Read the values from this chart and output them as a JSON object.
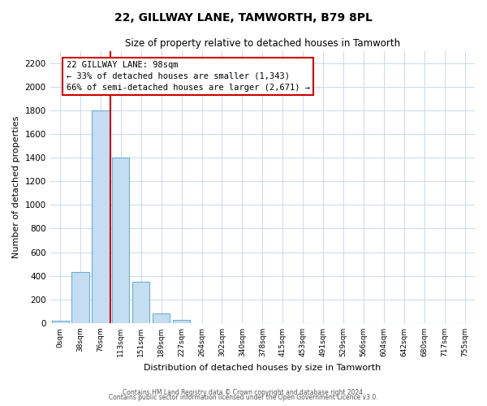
{
  "title": "22, GILLWAY LANE, TAMWORTH, B79 8PL",
  "subtitle": "Size of property relative to detached houses in Tamworth",
  "xlabel": "Distribution of detached houses by size in Tamworth",
  "ylabel": "Number of detached properties",
  "bar_labels": [
    "0sqm",
    "38sqm",
    "76sqm",
    "113sqm",
    "151sqm",
    "189sqm",
    "227sqm",
    "264sqm",
    "302sqm",
    "340sqm",
    "378sqm",
    "415sqm",
    "453sqm",
    "491sqm",
    "529sqm",
    "566sqm",
    "604sqm",
    "642sqm",
    "680sqm",
    "717sqm",
    "755sqm"
  ],
  "bar_heights": [
    20,
    430,
    1800,
    1400,
    350,
    80,
    25,
    0,
    0,
    0,
    0,
    0,
    0,
    0,
    0,
    0,
    0,
    0,
    0,
    0,
    0
  ],
  "bar_color": "#c5ddf0",
  "bar_edge_color": "#6aaed6",
  "ylim": [
    0,
    2300
  ],
  "yticks": [
    0,
    200,
    400,
    600,
    800,
    1000,
    1200,
    1400,
    1600,
    1800,
    2000,
    2200
  ],
  "property_line_x": 2.5,
  "property_line_color": "#cc0000",
  "annotation_title": "22 GILLWAY LANE: 98sqm",
  "annotation_line1": "← 33% of detached houses are smaller (1,343)",
  "annotation_line2": "66% of semi-detached houses are larger (2,671) →",
  "footer_line1": "Contains HM Land Registry data © Crown copyright and database right 2024.",
  "footer_line2": "Contains public sector information licensed under the Open Government Licence v3.0.",
  "background_color": "#ffffff",
  "grid_color": "#ccd8ea"
}
